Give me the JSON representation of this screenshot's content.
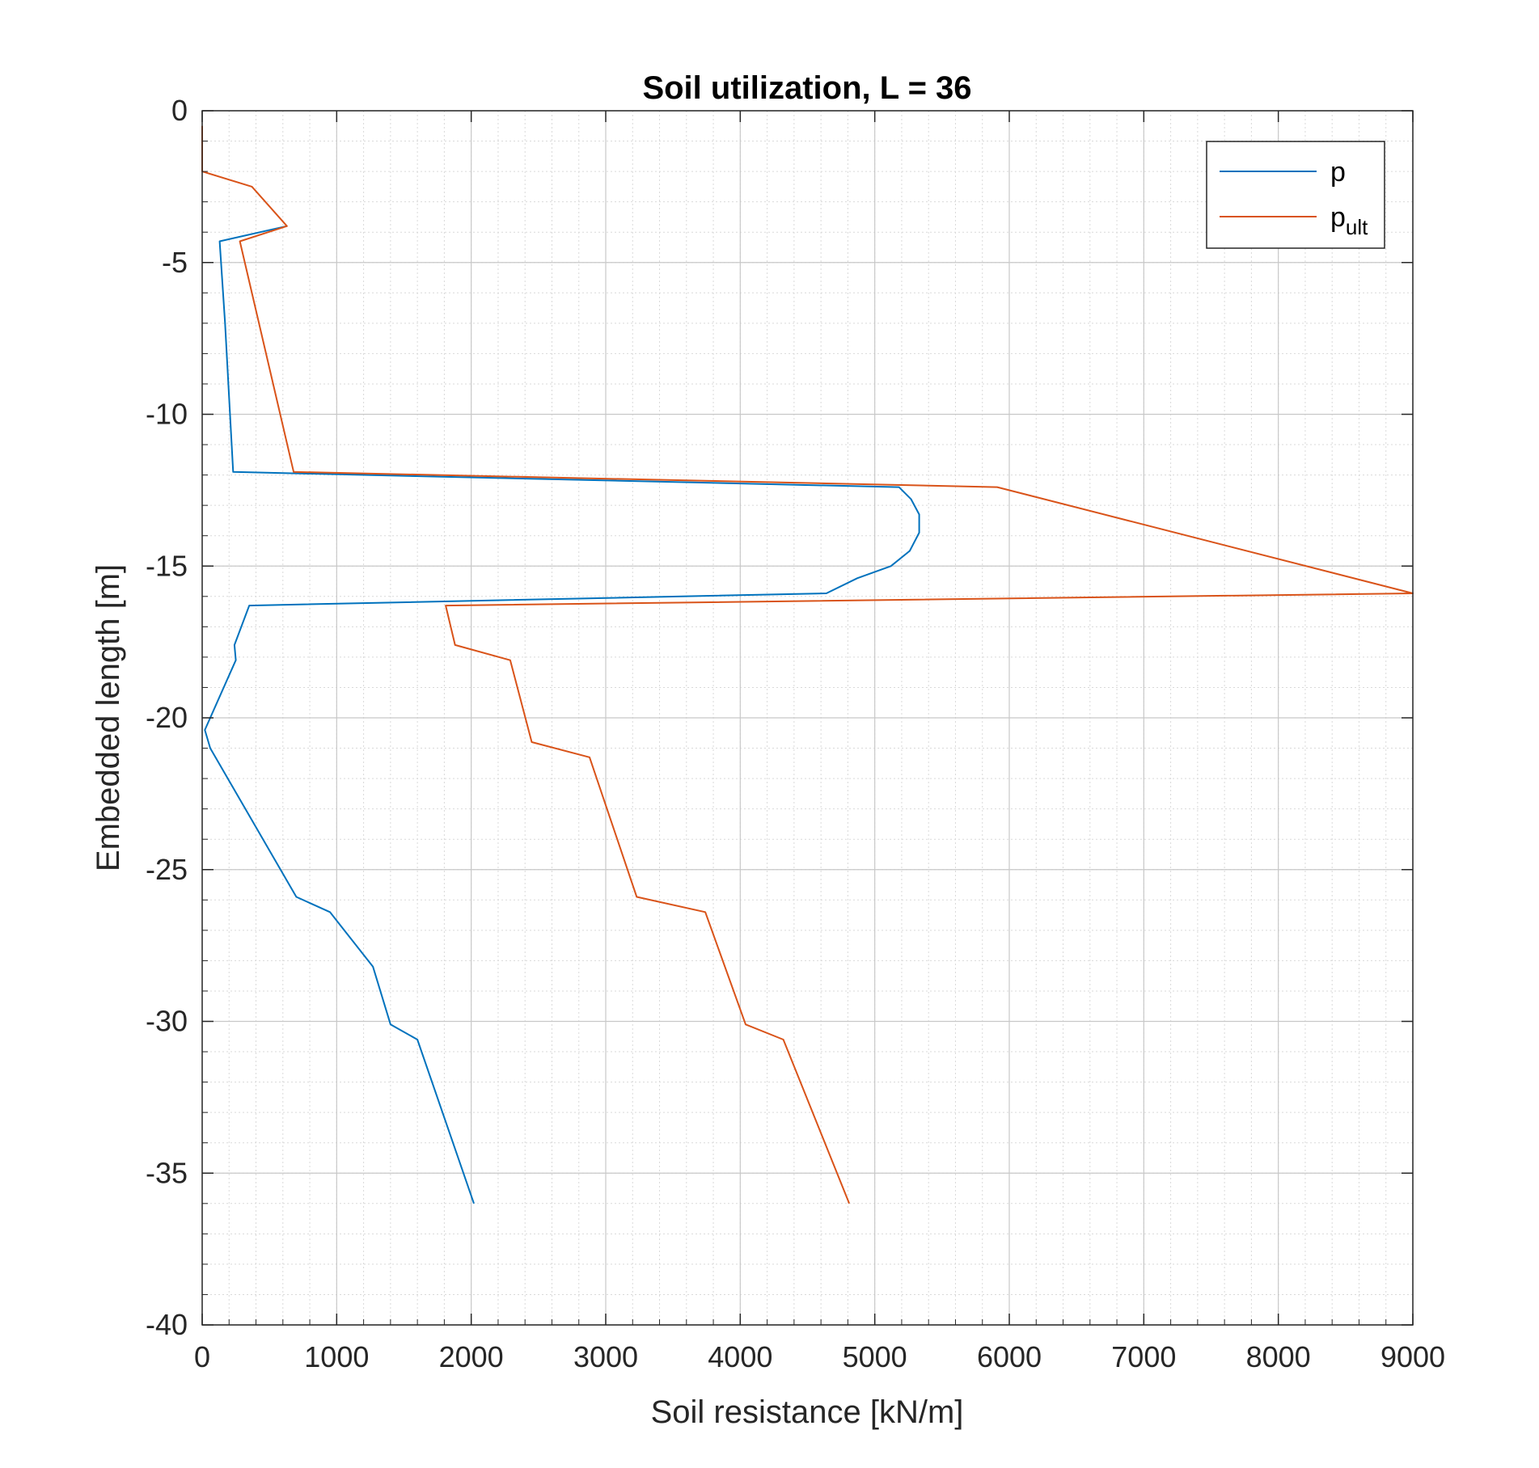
{
  "chart_data": {
    "type": "line",
    "title": "Soil utilization, L = 36",
    "xlabel": "Soil resistance [kN/m]",
    "ylabel": "Embedded length [m]",
    "xlim": [
      0,
      9000
    ],
    "ylim": [
      -40,
      0
    ],
    "xticks": [
      0,
      1000,
      2000,
      3000,
      4000,
      5000,
      6000,
      7000,
      8000,
      9000
    ],
    "yticks": [
      0,
      -5,
      -10,
      -15,
      -20,
      -25,
      -30,
      -35,
      -40
    ],
    "grid": true,
    "minor_grid": true,
    "legend_position": "top-right",
    "series": [
      {
        "name": "p",
        "color": "#0072BD",
        "points": [
          [
            630,
            -3.8
          ],
          [
            130,
            -4.3
          ],
          [
            170,
            -7.0
          ],
          [
            230,
            -11.9
          ],
          [
            5180,
            -12.4
          ],
          [
            5270,
            -12.8
          ],
          [
            5330,
            -13.3
          ],
          [
            5330,
            -13.9
          ],
          [
            5260,
            -14.5
          ],
          [
            5120,
            -15.0
          ],
          [
            4870,
            -15.4
          ],
          [
            4640,
            -15.9
          ],
          [
            350,
            -16.3
          ],
          [
            240,
            -17.6
          ],
          [
            250,
            -18.1
          ],
          [
            20,
            -20.4
          ],
          [
            60,
            -21.0
          ],
          [
            700,
            -25.9
          ],
          [
            950,
            -26.4
          ],
          [
            1270,
            -28.2
          ],
          [
            1400,
            -30.1
          ],
          [
            1600,
            -30.6
          ],
          [
            2020,
            -36.0
          ]
        ]
      },
      {
        "name": "p_ult",
        "color": "#D95319",
        "points": [
          [
            0,
            -0.5
          ],
          [
            0,
            -2.0
          ],
          [
            370,
            -2.5
          ],
          [
            630,
            -3.8
          ],
          [
            280,
            -4.3
          ],
          [
            680,
            -11.9
          ],
          [
            5910,
            -12.4
          ],
          [
            9000,
            -15.9
          ],
          [
            1810,
            -16.3
          ],
          [
            1880,
            -17.6
          ],
          [
            2290,
            -18.1
          ],
          [
            2450,
            -20.8
          ],
          [
            2880,
            -21.3
          ],
          [
            3230,
            -25.9
          ],
          [
            3740,
            -26.4
          ],
          [
            4040,
            -30.1
          ],
          [
            4320,
            -30.6
          ],
          [
            4810,
            -36.0
          ]
        ]
      }
    ]
  },
  "legend": {
    "items": [
      {
        "label": "p",
        "sub": ""
      },
      {
        "label": "p",
        "sub": "ult"
      }
    ]
  }
}
